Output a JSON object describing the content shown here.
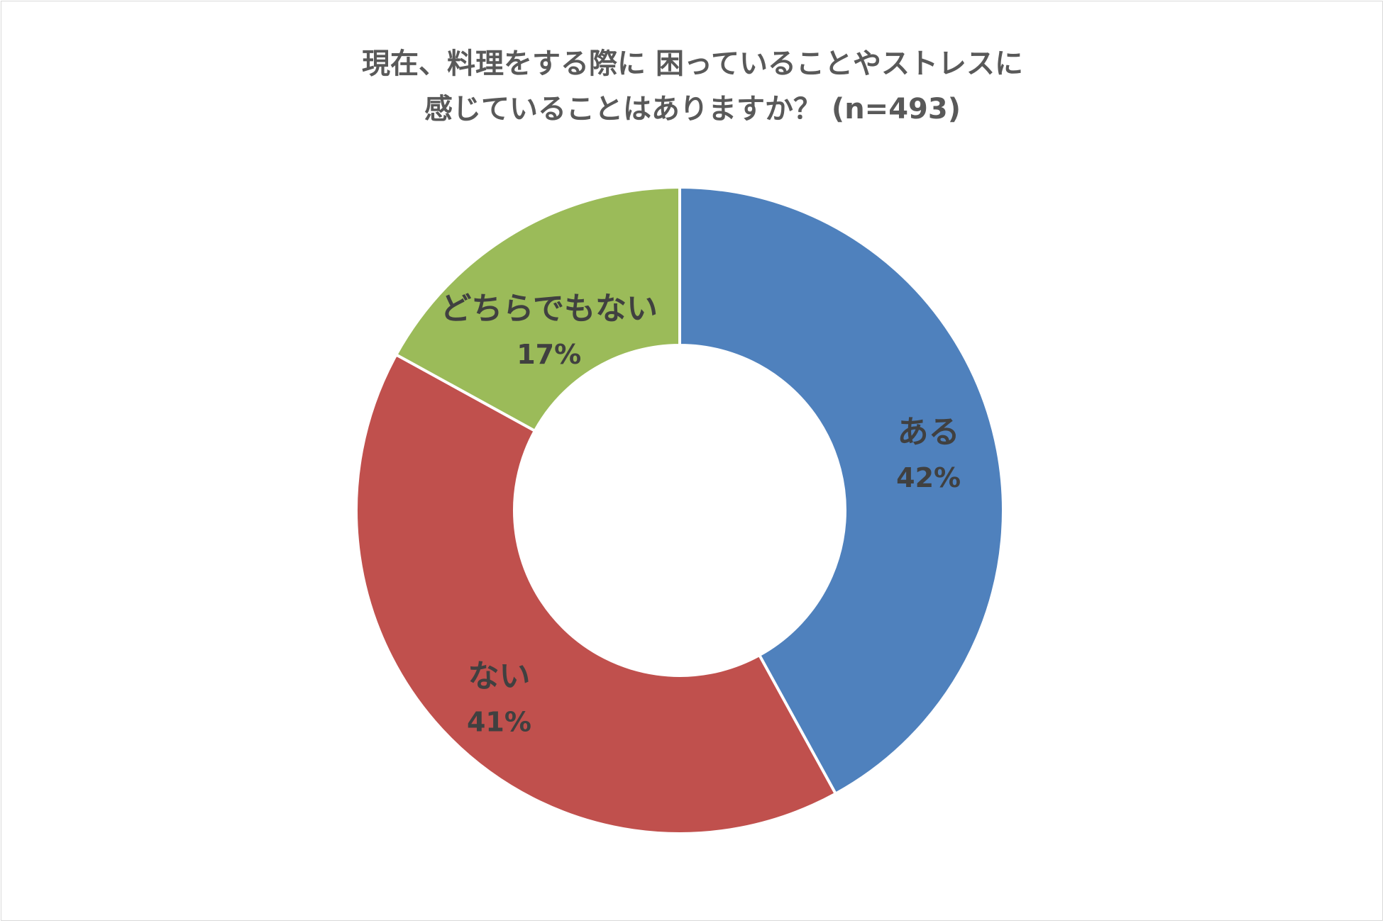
{
  "chart_data": {
    "type": "pie",
    "variant": "donut",
    "title_line1": "現在、料理をする際に 困っていることやストレスに",
    "title_line2": "感じていることはありますか？ (n=493)",
    "slices": [
      {
        "label": "ある",
        "value": 42,
        "value_label": "42%",
        "color": "#4f81bd"
      },
      {
        "label": "ない",
        "value": 41,
        "value_label": "41%",
        "color": "#c0504d"
      },
      {
        "label": "どちらでもない",
        "value": 17,
        "value_label": "17%",
        "color": "#9bbb59"
      }
    ]
  }
}
